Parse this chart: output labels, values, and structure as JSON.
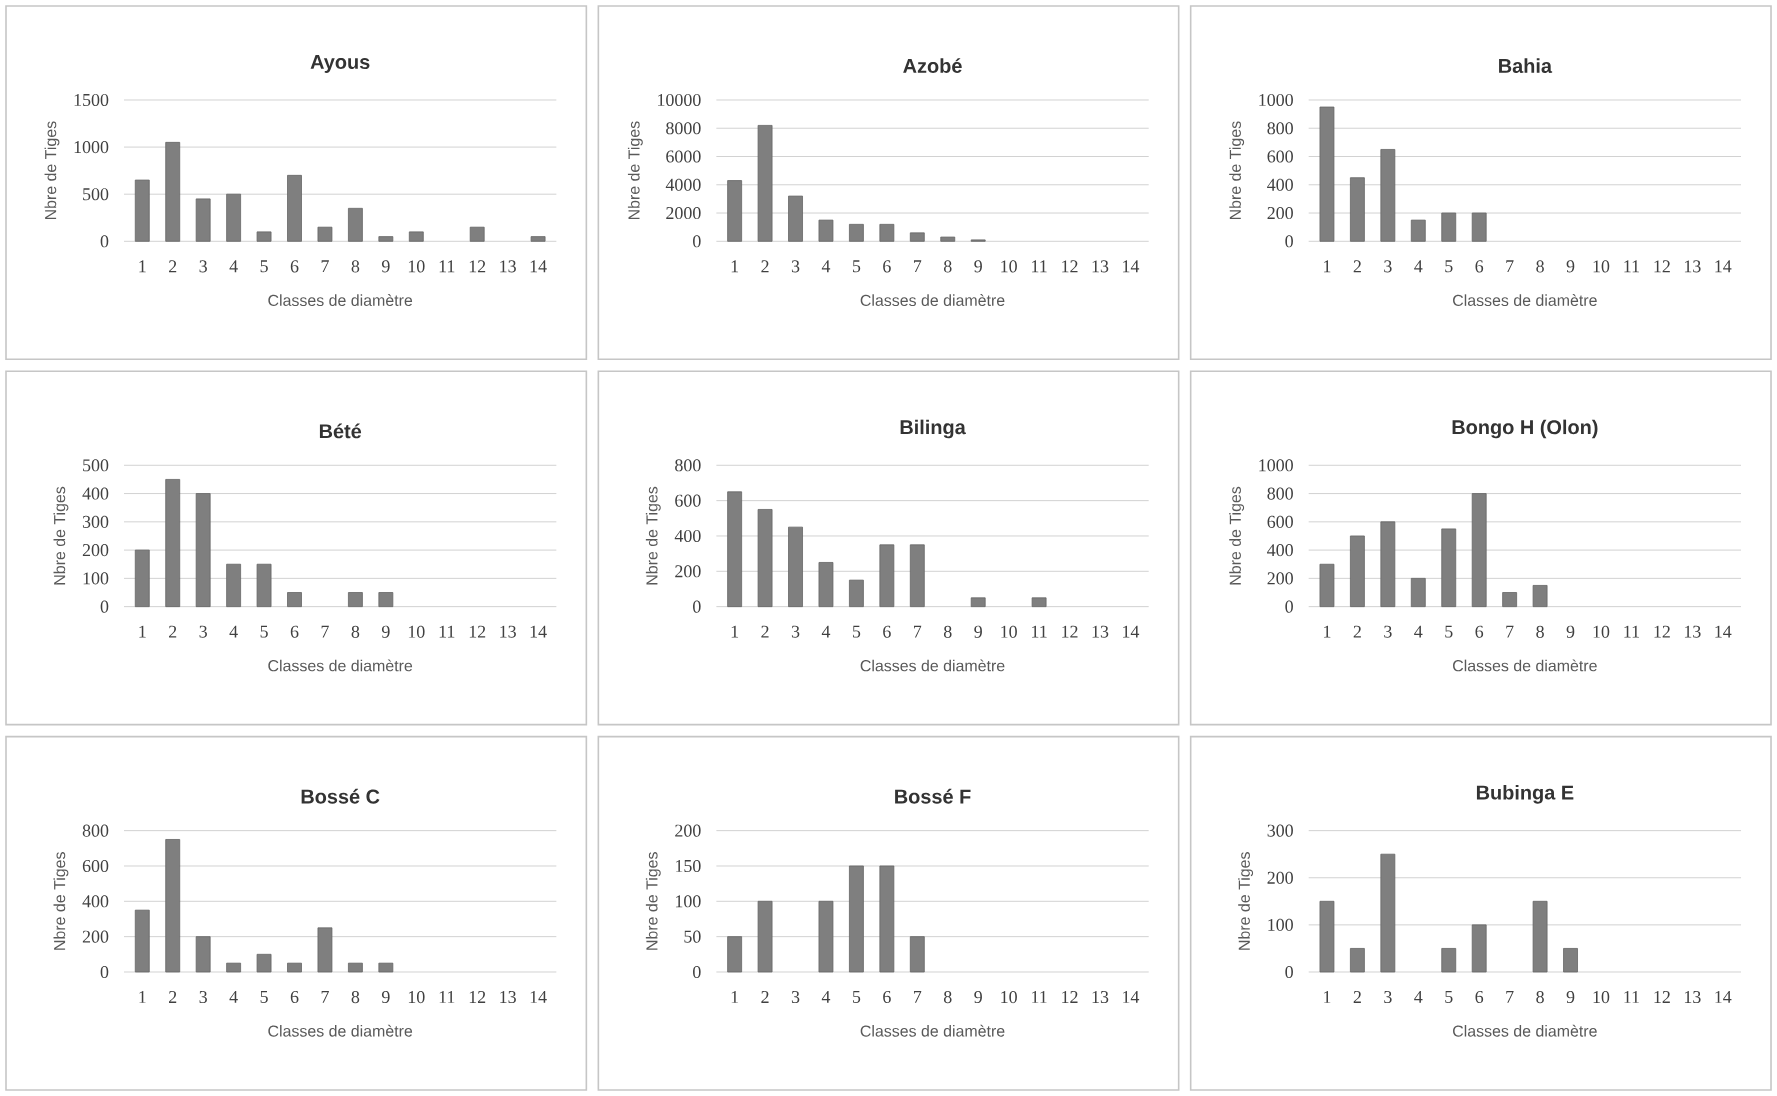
{
  "chart_data": [
    {
      "type": "bar",
      "title": "Ayous",
      "xlabel": "Classes de diamètre",
      "ylabel": "Nbre de Tiges",
      "categories": [
        "1",
        "2",
        "3",
        "4",
        "5",
        "6",
        "7",
        "8",
        "9",
        "10",
        "11",
        "12",
        "13",
        "14"
      ],
      "values": [
        650,
        1050,
        450,
        500,
        100,
        700,
        150,
        350,
        50,
        100,
        null,
        150,
        null,
        50
      ],
      "color": "#7f7f7f",
      "ylim": [
        0,
        1500
      ],
      "yticks": [
        0,
        500,
        1000,
        1500
      ],
      "grid": "y"
    },
    {
      "type": "bar",
      "title": "Azobé",
      "xlabel": "Classes de diamètre",
      "ylabel": "Nbre de Tiges",
      "categories": [
        "1",
        "2",
        "3",
        "4",
        "5",
        "6",
        "7",
        "8",
        "9",
        "10",
        "11",
        "12",
        "13",
        "14"
      ],
      "values": [
        4300,
        8200,
        3200,
        1500,
        1200,
        1200,
        600,
        300,
        100,
        null,
        null,
        null,
        null,
        null
      ],
      "color": "#7f7f7f",
      "ylim": [
        0,
        10000
      ],
      "yticks": [
        0,
        2000,
        4000,
        6000,
        8000,
        10000
      ],
      "grid": "y"
    },
    {
      "type": "bar",
      "title": "Bahia",
      "xlabel": "Classes de diamètre",
      "ylabel": "Nbre de Tiges",
      "categories": [
        "1",
        "2",
        "3",
        "4",
        "5",
        "6",
        "7",
        "8",
        "9",
        "10",
        "11",
        "12",
        "13",
        "14"
      ],
      "values": [
        950,
        450,
        650,
        150,
        200,
        200,
        null,
        null,
        null,
        null,
        null,
        null,
        null,
        null
      ],
      "color": "#7f7f7f",
      "ylim": [
        0,
        1000
      ],
      "yticks": [
        0,
        200,
        400,
        600,
        800,
        1000
      ],
      "grid": "y"
    },
    {
      "type": "bar",
      "title": "Bété",
      "xlabel": "Classes de diamètre",
      "ylabel": "Nbre de Tiges",
      "categories": [
        "1",
        "2",
        "3",
        "4",
        "5",
        "6",
        "7",
        "8",
        "9",
        "10",
        "11",
        "12",
        "13",
        "14"
      ],
      "values": [
        200,
        450,
        400,
        150,
        150,
        50,
        null,
        50,
        50,
        null,
        null,
        null,
        null,
        null
      ],
      "color": "#7f7f7f",
      "ylim": [
        0,
        500
      ],
      "yticks": [
        0,
        100,
        200,
        300,
        400,
        500
      ],
      "grid": "y"
    },
    {
      "type": "bar",
      "title": "Bilinga",
      "xlabel": "Classes de diamètre",
      "ylabel": "Nbre de Tiges",
      "categories": [
        "1",
        "2",
        "3",
        "4",
        "5",
        "6",
        "7",
        "8",
        "9",
        "10",
        "11",
        "12",
        "13",
        "14"
      ],
      "values": [
        650,
        550,
        450,
        250,
        150,
        350,
        350,
        null,
        50,
        null,
        50,
        null,
        null,
        null
      ],
      "color": "#7f7f7f",
      "ylim": [
        0,
        800
      ],
      "yticks": [
        0,
        200,
        400,
        600,
        800
      ],
      "grid": "y"
    },
    {
      "type": "bar",
      "title": "Bongo H (Olon)",
      "xlabel": "Classes de diamètre",
      "ylabel": "Nbre de Tiges",
      "categories": [
        "1",
        "2",
        "3",
        "4",
        "5",
        "6",
        "7",
        "8",
        "9",
        "10",
        "11",
        "12",
        "13",
        "14"
      ],
      "values": [
        300,
        500,
        600,
        200,
        550,
        800,
        100,
        150,
        null,
        null,
        null,
        null,
        null,
        null
      ],
      "color": "#7f7f7f",
      "ylim": [
        0,
        1000
      ],
      "yticks": [
        0,
        200,
        400,
        600,
        800,
        1000
      ],
      "grid": "y"
    },
    {
      "type": "bar",
      "title": "Bossé C",
      "xlabel": "Classes de diamètre",
      "ylabel": "Nbre de Tiges",
      "categories": [
        "1",
        "2",
        "3",
        "4",
        "5",
        "6",
        "7",
        "8",
        "9",
        "10",
        "11",
        "12",
        "13",
        "14"
      ],
      "values": [
        350,
        750,
        200,
        50,
        100,
        50,
        250,
        50,
        50,
        null,
        null,
        null,
        null,
        null
      ],
      "color": "#7f7f7f",
      "ylim": [
        0,
        800
      ],
      "yticks": [
        0,
        200,
        400,
        600,
        800
      ],
      "grid": "y"
    },
    {
      "type": "bar",
      "title": "Bossé F",
      "xlabel": "Classes de diamètre",
      "ylabel": "Nbre de Tiges",
      "categories": [
        "1",
        "2",
        "3",
        "4",
        "5",
        "6",
        "7",
        "8",
        "9",
        "10",
        "11",
        "12",
        "13",
        "14"
      ],
      "values": [
        50,
        100,
        null,
        100,
        150,
        150,
        50,
        null,
        null,
        null,
        null,
        null,
        null,
        null
      ],
      "color": "#7f7f7f",
      "ylim": [
        0,
        200
      ],
      "yticks": [
        0,
        50,
        100,
        150,
        200
      ],
      "grid": "y"
    },
    {
      "type": "bar",
      "title": "Bubinga E",
      "xlabel": "Classes de diamètre",
      "ylabel": "Nbre de Tiges",
      "categories": [
        "1",
        "2",
        "3",
        "4",
        "5",
        "6",
        "7",
        "8",
        "9",
        "10",
        "11",
        "12",
        "13",
        "14"
      ],
      "values": [
        150,
        50,
        250,
        null,
        50,
        100,
        null,
        150,
        50,
        null,
        null,
        null,
        null,
        null
      ],
      "color": "#7f7f7f",
      "ylim": [
        0,
        300
      ],
      "yticks": [
        0,
        100,
        200,
        300
      ],
      "grid": "y"
    }
  ]
}
